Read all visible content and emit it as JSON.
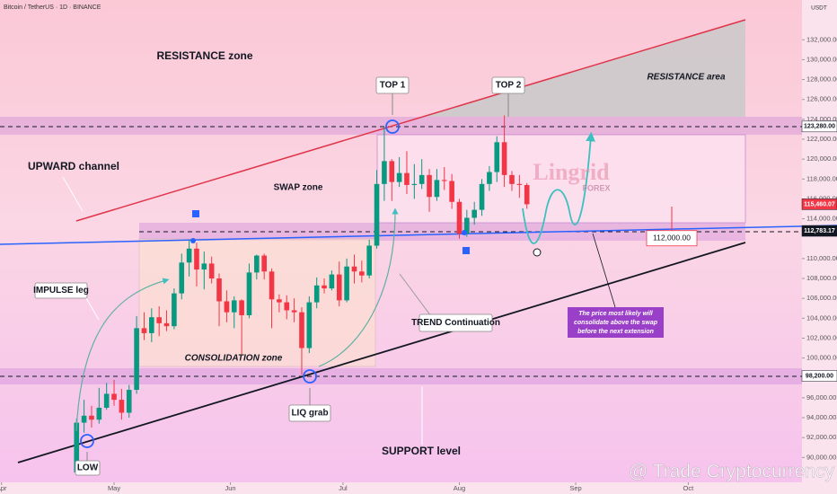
{
  "header": {
    "symbol": "Bitcoin / TetherUS · 1D · BINANCE",
    "currency": "USDT"
  },
  "chart_data": {
    "type": "candlestick",
    "up_color": "#089981",
    "down_color": "#f23645",
    "x": [
      111,
      113,
      115,
      117,
      119,
      121,
      123,
      125,
      127,
      129,
      131,
      133,
      135,
      137,
      139,
      141,
      143,
      145,
      147,
      149,
      151,
      153,
      155,
      157,
      159,
      161,
      163,
      165,
      167,
      169,
      171,
      173,
      175,
      177,
      179,
      181,
      183,
      185,
      187,
      189,
      191,
      193,
      195,
      197,
      199,
      201,
      203,
      205,
      207,
      209,
      211,
      213,
      215,
      217,
      219,
      221,
      223,
      225,
      227,
      229,
      231
    ],
    "open": [
      88500,
      93500,
      94200,
      93800,
      95000,
      96400,
      95800,
      94500,
      96800,
      103000,
      102500,
      104100,
      103500,
      103200,
      106500,
      109600,
      111000,
      108900,
      109500,
      108000,
      105700,
      104600,
      105800,
      104300,
      108600,
      110300,
      108700,
      105900,
      105600,
      104800,
      104600,
      101000,
      105600,
      107300,
      107000,
      108400,
      105800,
      109200,
      108700,
      108300,
      111300,
      117500,
      119800,
      117700,
      118600,
      117400,
      117500,
      118400,
      116200,
      117900,
      117800,
      115700,
      112500,
      114100,
      114900,
      117500,
      118700,
      121700,
      118400,
      117500,
      117400
    ],
    "high": [
      93900,
      95800,
      95200,
      97000,
      97500,
      97800,
      96900,
      97300,
      104200,
      104600,
      105000,
      105200,
      104800,
      107000,
      110500,
      111900,
      111600,
      110700,
      110200,
      108500,
      106800,
      106200,
      105900,
      109500,
      110400,
      110500,
      109000,
      106400,
      106300,
      106000,
      105100,
      106200,
      108100,
      108000,
      108800,
      109700,
      110000,
      110400,
      109800,
      111900,
      118900,
      123200,
      120000,
      120200,
      120800,
      119500,
      120000,
      119000,
      119000,
      119200,
      118500,
      116000,
      114900,
      115700,
      118000,
      119300,
      122300,
      124400,
      118800,
      118400,
      117600
    ],
    "low": [
      88200,
      92500,
      93000,
      93400,
      94800,
      95200,
      93800,
      94000,
      96400,
      101800,
      101600,
      102200,
      102700,
      102900,
      105900,
      108200,
      107200,
      106900,
      107500,
      103200,
      103600,
      103000,
      100400,
      104000,
      107900,
      107900,
      103000,
      104600,
      103900,
      103600,
      98300,
      100500,
      105000,
      106500,
      106800,
      105200,
      105600,
      107500,
      107600,
      108000,
      111000,
      115800,
      115800,
      117200,
      116500,
      116000,
      117000,
      114700,
      115800,
      116900,
      115000,
      112000,
      112200,
      113400,
      114300,
      116800,
      117700,
      117200,
      116800,
      116100,
      115000
    ],
    "close": [
      93500,
      94200,
      93800,
      95000,
      96400,
      95800,
      94500,
      96800,
      103000,
      102500,
      104100,
      103500,
      103200,
      106500,
      109600,
      111000,
      108900,
      109500,
      108000,
      105700,
      104600,
      105800,
      104300,
      108600,
      110300,
      108700,
      105900,
      105600,
      104800,
      104600,
      101000,
      105600,
      107300,
      107000,
      108400,
      105800,
      109200,
      108700,
      108300,
      111300,
      117500,
      119800,
      117700,
      118600,
      117400,
      117500,
      118400,
      116200,
      117900,
      117800,
      115700,
      112500,
      114100,
      114900,
      117500,
      118700,
      121700,
      118400,
      117500,
      117400,
      115460
    ],
    "xlim": [
      90.6,
      304.3
    ],
    "ylim": [
      87500,
      136000
    ],
    "xticks": [
      {
        "value": 91,
        "label": "Apr"
      },
      {
        "value": 121,
        "label": "May"
      },
      {
        "value": 152,
        "label": "Jun"
      },
      {
        "value": 182,
        "label": "Jul"
      },
      {
        "value": 213,
        "label": "Aug"
      },
      {
        "value": 244,
        "label": "Sep"
      },
      {
        "value": 274,
        "label": "Oct"
      }
    ],
    "yticks": [
      {
        "value": 90000,
        "label": "90,000.00"
      },
      {
        "value": 92000,
        "label": "92,000.00"
      },
      {
        "value": 94000,
        "label": "94,000.00"
      },
      {
        "value": 96000,
        "label": "96,000.00"
      },
      {
        "value": 100000,
        "label": "100,000.00"
      },
      {
        "value": 102000,
        "label": "102,000.00"
      },
      {
        "value": 104000,
        "label": "104,000.00"
      },
      {
        "value": 106000,
        "label": "106,000.00"
      },
      {
        "value": 108000,
        "label": "108,000.00"
      },
      {
        "value": 110000,
        "label": "110,000.00"
      },
      {
        "value": 114000,
        "label": "114,000.00"
      },
      {
        "value": 116000,
        "label": "116,000.00"
      },
      {
        "value": 118000,
        "label": "118,000.00"
      },
      {
        "value": 120000,
        "label": "120,000.00"
      },
      {
        "value": 122000,
        "label": "122,000.00"
      },
      {
        "value": 124000,
        "label": "124,000.00"
      },
      {
        "value": 126000,
        "label": "126,000.00"
      },
      {
        "value": 128000,
        "label": "128,000.00"
      },
      {
        "value": 130000,
        "label": "130,000.00"
      },
      {
        "value": 132000,
        "label": "132,000.00"
      }
    ],
    "levels": [
      {
        "value": 123280,
        "label": "123,280.00",
        "color": "#ffffff",
        "text_color": "#131722"
      },
      {
        "value": 115460.07,
        "label": "115,460.07",
        "color": "#f23645",
        "text_color": "#ffffff"
      },
      {
        "value": 112783.17,
        "label": "112,783.17",
        "color": "#131722",
        "text_color": "#ffffff"
      },
      {
        "value": 98200,
        "label": "98,200.00",
        "color": "#ffffff",
        "text_color": "#131722"
      }
    ],
    "target": {
      "value": 112000,
      "label": "112,000.00"
    }
  },
  "annotations": {
    "resistance_zone": "RESISTANCE zone",
    "resistance_area": "RESISTANCE area",
    "upward_channel": "UPWARD channel",
    "swap_zone": "SWAP zone",
    "top1": "TOP 1",
    "top2": "TOP 2",
    "impulse_leg": "IMPULSE leg",
    "consolidation_zone": "CONSOLIDATION zone",
    "trend_continuation": "TREND Continuation",
    "liq_grab": "LIQ grab",
    "support_level": "SUPPORT level",
    "low": "LOW",
    "note": [
      "The price most likely will",
      "consolidate above the swap",
      "before the next extension"
    ]
  },
  "watermark": {
    "brand": "Lingrid",
    "sub": "FOREX"
  },
  "footer": "@ Trade Cryptocurrency"
}
